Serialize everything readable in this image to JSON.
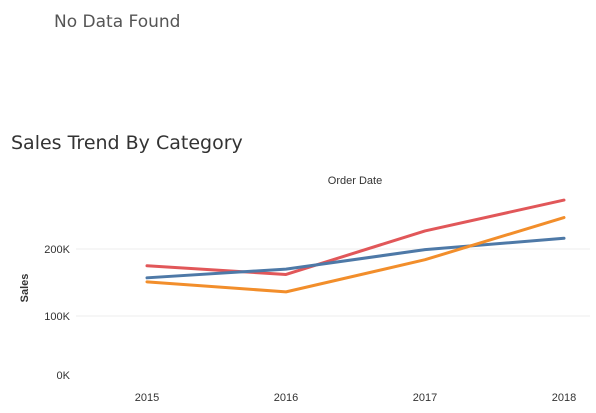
{
  "header": {
    "message": "No Data Found"
  },
  "chart_data": {
    "type": "line",
    "title": "Sales Trend By Category",
    "x_header": "Order Date",
    "xlabel": "",
    "ylabel": "Sales",
    "categories": [
      "2015",
      "2016",
      "2017",
      "2018"
    ],
    "ylim": [
      0,
      300000
    ],
    "yticks": [
      0,
      100000,
      200000
    ],
    "ytick_labels": [
      "0K",
      "100K",
      "200K"
    ],
    "grid": true,
    "legend": "none",
    "series": [
      {
        "color": "#e15759",
        "values": [
          175000,
          162000,
          227000,
          273000
        ]
      },
      {
        "color": "#4e79a7",
        "values": [
          157000,
          170000,
          199000,
          216000
        ]
      },
      {
        "color": "#f28e2b",
        "values": [
          151000,
          136000,
          184000,
          247000
        ]
      }
    ]
  }
}
